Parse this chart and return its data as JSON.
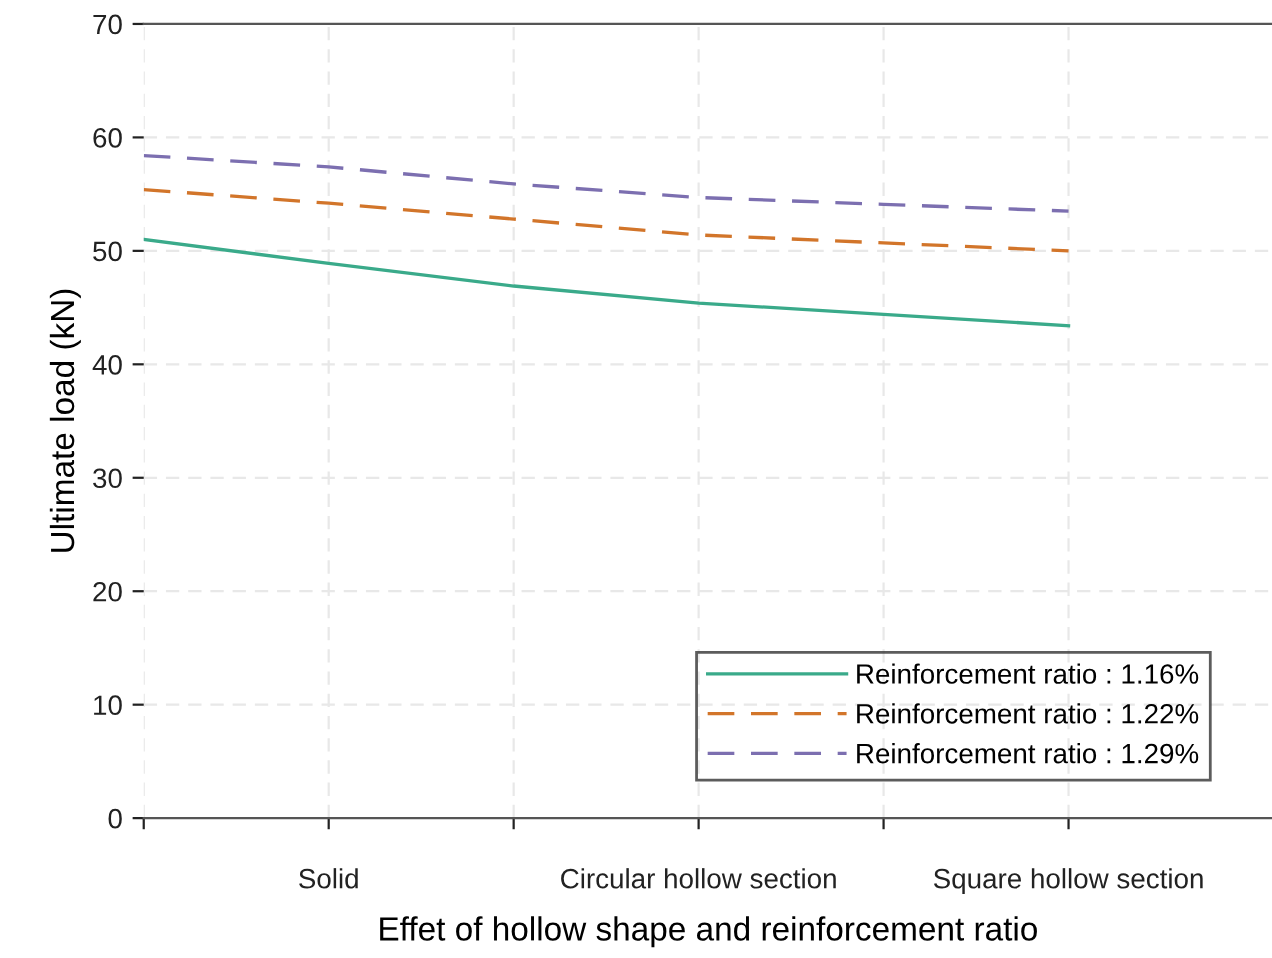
{
  "chart_data": {
    "type": "line",
    "xlabel": "Effet of hollow shape and reinforcement ratio",
    "ylabel": "Ultimate load (kN)",
    "categories": [
      null,
      "Solid",
      null,
      "Circular hollow section",
      null,
      "Square hollow section"
    ],
    "ylim": [
      0,
      70
    ],
    "yticks": [
      0,
      10,
      20,
      30,
      40,
      50,
      60,
      70
    ],
    "grid": true,
    "legend": "bottom right",
    "marker": "none",
    "series": [
      {
        "name": "Reinforcement ratio : 1.16%",
        "color": "#3aaa8a",
        "line_style": "solid",
        "values": [
          51.0,
          48.9,
          46.9,
          45.4,
          44.4,
          43.4
        ]
      },
      {
        "name": "Reinforcement ratio : 1.22%",
        "color": "#d2752a",
        "line_style": "dashed",
        "values": [
          55.4,
          54.2,
          52.8,
          51.4,
          50.7,
          50.0
        ]
      },
      {
        "name": "Reinforcement ratio : 1.29%",
        "color": "#7c6fb0",
        "line_style": "dashed",
        "values": [
          58.4,
          57.4,
          55.9,
          54.7,
          54.1,
          53.5
        ]
      }
    ]
  }
}
